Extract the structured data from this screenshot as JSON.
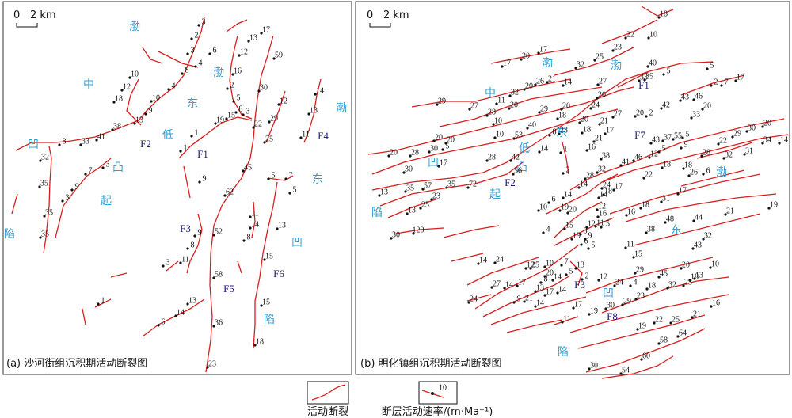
{
  "panels": [
    {
      "caption": "(a) 沙河街组沉积期活动断裂图",
      "scale_zero": "0",
      "scale_label": "2 km",
      "regions": [
        "渤",
        "中",
        "渤",
        "东",
        "渤",
        "低",
        "凹",
        "凸",
        "起",
        "东",
        "凹",
        "陷",
        "陷"
      ],
      "faults": [
        "F1",
        "F2",
        "F3",
        "F4",
        "F5",
        "F6"
      ],
      "rates": [
        3,
        2,
        3,
        4,
        6,
        8,
        10,
        12,
        18,
        4,
        10,
        9,
        13,
        38,
        41,
        33,
        8,
        32,
        35,
        3,
        9,
        7,
        3,
        35,
        35,
        13,
        17,
        12,
        59,
        16,
        2,
        5,
        8,
        3,
        15,
        30,
        12,
        19,
        1,
        1,
        22,
        29,
        25,
        45,
        9,
        62,
        14,
        13,
        11,
        5,
        7,
        5,
        11,
        14,
        8,
        13,
        9,
        52,
        8,
        11,
        3,
        58,
        15,
        1,
        13,
        14,
        6,
        36,
        15,
        18,
        23
      ]
    },
    {
      "caption": "(b) 明化镇组沉积期活动断裂图",
      "scale_zero": "0",
      "scale_label": "2 km",
      "regions": [
        "渤",
        "渤",
        "中",
        "东",
        "低",
        "凹",
        "凸",
        "起",
        "陷",
        "渤",
        "东",
        "凹",
        "陷"
      ],
      "faults": [
        "F1",
        "F2",
        "F3",
        "F7",
        "F8"
      ],
      "rates": [
        18,
        22,
        10,
        23,
        25,
        32,
        17,
        20,
        17,
        40,
        5,
        5,
        33,
        35,
        2,
        7,
        17,
        27,
        26,
        21,
        14,
        20,
        32,
        11,
        29,
        27,
        28,
        20,
        29,
        20,
        24,
        20,
        43,
        46,
        20,
        42,
        33,
        27,
        20,
        2,
        18,
        20,
        21,
        10,
        40,
        8,
        23,
        18,
        17,
        10,
        53,
        14,
        1,
        16,
        21,
        20,
        30,
        5,
        20,
        28,
        20,
        17,
        28,
        42,
        56,
        72,
        35,
        57,
        35,
        30,
        13,
        23,
        25,
        13,
        30,
        120,
        2,
        28,
        32,
        38,
        41,
        46,
        22,
        18,
        12,
        5,
        43,
        37,
        55,
        5,
        9,
        28,
        22,
        29,
        30,
        20,
        34,
        14,
        32,
        31,
        18,
        26,
        6,
        31,
        17,
        18,
        16,
        48,
        44,
        21,
        19,
        38,
        43,
        32,
        11,
        15,
        20,
        10,
        13,
        29,
        45,
        18,
        24,
        4,
        18,
        32,
        23,
        12,
        2,
        14,
        14,
        14,
        18,
        24,
        17,
        12,
        16,
        11,
        15,
        12,
        6,
        10,
        19,
        20,
        4,
        15,
        19,
        9,
        6,
        8,
        5,
        14,
        24,
        12,
        7,
        13,
        20,
        10,
        8,
        14,
        5,
        27,
        14,
        17,
        13,
        17,
        14,
        24,
        9,
        21,
        14,
        23,
        22,
        25,
        21,
        16,
        17,
        19,
        30,
        29,
        19,
        11,
        58,
        64,
        60,
        30,
        54,
        25
      ]
    }
  ],
  "legend": {
    "fault_label": "活动断裂",
    "rate_label": "断层活动速率/(m·Ma⁻¹)",
    "rate_example": 10
  }
}
